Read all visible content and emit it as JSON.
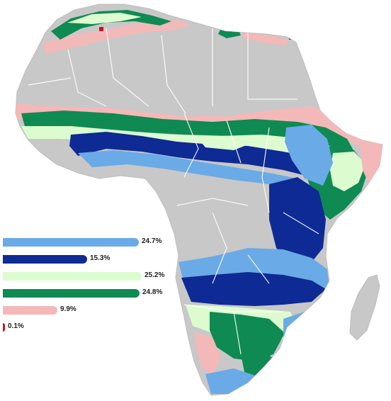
{
  "legend": {
    "items": [
      {
        "label": "24.7%",
        "value": 24.7,
        "color": "#6aaae6"
      },
      {
        "label": "15.3%",
        "value": 15.3,
        "color": "#0e2a94"
      },
      {
        "label": "25.2%",
        "value": 25.2,
        "color": "#dcfcd0"
      },
      {
        "label": "24.8%",
        "value": 24.8,
        "color": "#0e8a52"
      },
      {
        "label": "9.9%",
        "value": 9.9,
        "color": "#f4b8b8"
      },
      {
        "label": "0.1%",
        "value": 0.1,
        "color": "#c41818"
      }
    ]
  },
  "map": {
    "land_color": "#c8c8c8",
    "border_color": "#ffffff",
    "water_color": "#ffffff"
  }
}
